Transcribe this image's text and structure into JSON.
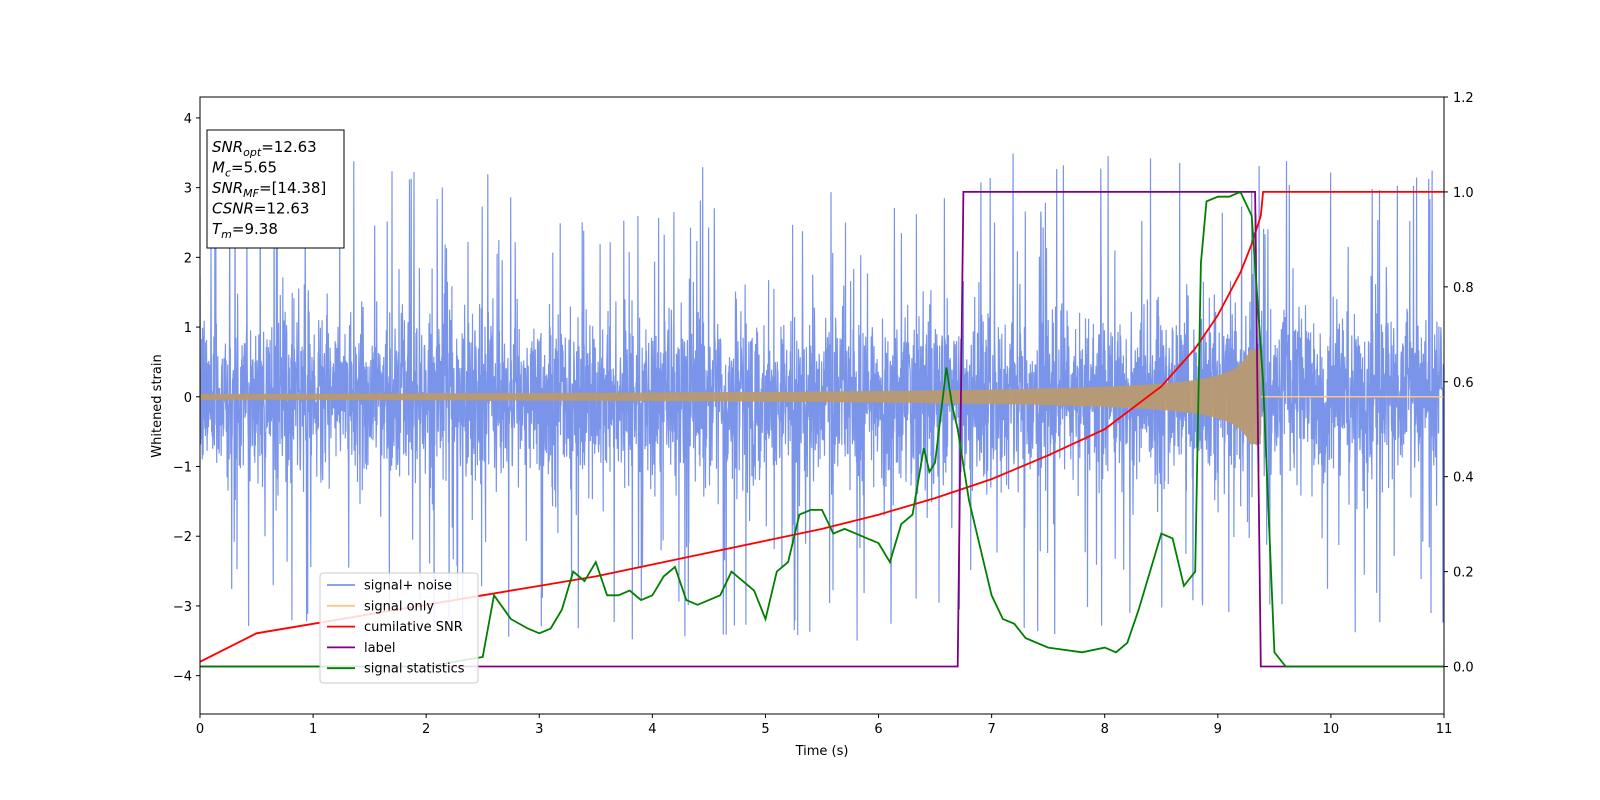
{
  "chart_data": {
    "type": "line",
    "xlabel": "Time (s)",
    "ylabel": "Whitened strain",
    "xlim": [
      0,
      11
    ],
    "ylim": [
      -4.55,
      4.3
    ],
    "y2lim": [
      -0.1,
      1.2
    ],
    "xticks": [
      "0",
      "1",
      "2",
      "3",
      "4",
      "5",
      "6",
      "7",
      "8",
      "9",
      "10",
      "11"
    ],
    "yticks": [
      "−4",
      "−3",
      "−2",
      "−1",
      "0",
      "1",
      "2",
      "3",
      "4"
    ],
    "y2ticks": [
      "0.0",
      "0.2",
      "0.4",
      "0.6",
      "0.8",
      "1.0",
      "1.2"
    ],
    "grid": false,
    "legend_position": "lower-left",
    "info_box": {
      "position": "top-left",
      "lines": [
        {
          "base": "SNR",
          "sub": "opt",
          "value": "=12.63"
        },
        {
          "base": "M",
          "sub": "c",
          "value": "=5.65"
        },
        {
          "base": "SNR",
          "sub": "MF",
          "value": "=[14.38]"
        },
        {
          "base": "CSNR",
          "sub": "",
          "value": "=12.63"
        },
        {
          "base": "T",
          "sub": "m",
          "value": "=9.38"
        }
      ]
    },
    "series": [
      {
        "name": "signal+ noise",
        "color": "#7994e9",
        "axis": "left",
        "description_stats": {
          "envelope": 1.5,
          "spike_max": 3.9,
          "spike_min": -4.15,
          "t_end": 11.0
        }
      },
      {
        "name": "signal only",
        "color": "#fdc58a",
        "axis": "left",
        "description_stats": {
          "chirp_merger_t": 9.38,
          "peak_amplitude": 0.68
        }
      },
      {
        "name": "cumilative SNR",
        "color": "#ff0000",
        "axis": "right",
        "x": [
          0,
          0.5,
          1,
          1.5,
          2,
          2.5,
          3,
          3.5,
          4,
          4.5,
          5,
          5.5,
          6,
          6.5,
          7,
          7.5,
          8,
          8.5,
          8.8,
          9.0,
          9.2,
          9.3,
          9.38,
          9.4,
          11
        ],
        "y": [
          0.01,
          0.07,
          0.09,
          0.11,
          0.13,
          0.15,
          0.17,
          0.19,
          0.215,
          0.24,
          0.265,
          0.29,
          0.32,
          0.355,
          0.395,
          0.445,
          0.5,
          0.59,
          0.67,
          0.74,
          0.83,
          0.89,
          0.95,
          1.0,
          1.0
        ]
      },
      {
        "name": "label",
        "color": "#800080",
        "axis": "right",
        "x": [
          0,
          6.7,
          6.75,
          9.33,
          9.38,
          11
        ],
        "y": [
          0,
          0,
          1,
          1,
          0,
          0
        ]
      },
      {
        "name": "signal statistics",
        "color": "#008000",
        "axis": "right",
        "x": [
          0,
          0.5,
          1,
          1.5,
          2,
          2.5,
          2.6,
          2.75,
          2.9,
          3.0,
          3.1,
          3.2,
          3.3,
          3.4,
          3.5,
          3.6,
          3.7,
          3.8,
          3.9,
          4.0,
          4.1,
          4.2,
          4.3,
          4.4,
          4.5,
          4.6,
          4.7,
          4.8,
          4.9,
          5.0,
          5.1,
          5.2,
          5.3,
          5.4,
          5.5,
          5.6,
          5.7,
          5.8,
          5.9,
          6.0,
          6.1,
          6.2,
          6.3,
          6.4,
          6.45,
          6.5,
          6.6,
          6.65,
          6.7,
          6.8,
          6.9,
          7.0,
          7.1,
          7.2,
          7.3,
          7.5,
          7.8,
          8.0,
          8.1,
          8.2,
          8.3,
          8.4,
          8.5,
          8.6,
          8.7,
          8.8,
          8.85,
          8.9,
          9.0,
          9.1,
          9.2,
          9.3,
          9.4,
          9.5,
          9.6,
          11
        ],
        "y": [
          0,
          0,
          0,
          0,
          0,
          0.02,
          0.15,
          0.1,
          0.08,
          0.07,
          0.08,
          0.12,
          0.2,
          0.18,
          0.22,
          0.15,
          0.15,
          0.16,
          0.14,
          0.15,
          0.19,
          0.21,
          0.14,
          0.13,
          0.14,
          0.15,
          0.2,
          0.18,
          0.16,
          0.1,
          0.2,
          0.22,
          0.32,
          0.33,
          0.33,
          0.28,
          0.29,
          0.28,
          0.27,
          0.26,
          0.22,
          0.3,
          0.32,
          0.46,
          0.41,
          0.43,
          0.63,
          0.55,
          0.5,
          0.35,
          0.25,
          0.15,
          0.1,
          0.09,
          0.06,
          0.04,
          0.03,
          0.04,
          0.03,
          0.05,
          0.12,
          0.2,
          0.28,
          0.27,
          0.17,
          0.2,
          0.85,
          0.98,
          0.99,
          0.99,
          1.0,
          0.95,
          0.6,
          0.03,
          0.0,
          0.0
        ]
      }
    ]
  }
}
